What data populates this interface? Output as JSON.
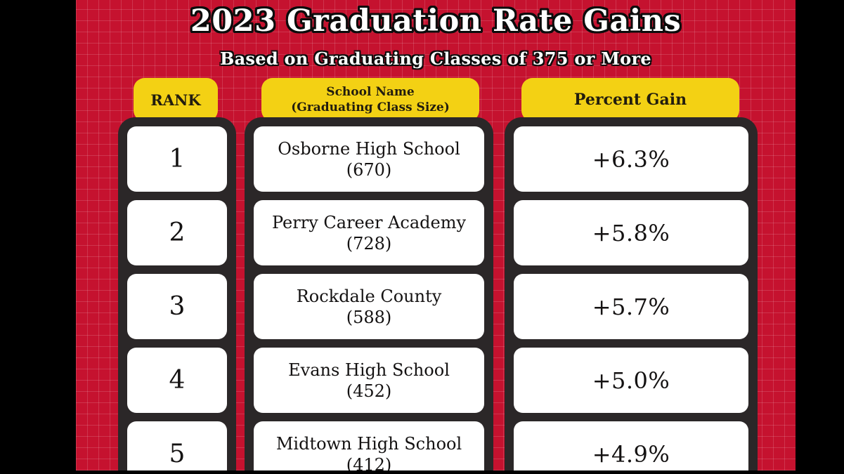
{
  "header": {
    "title": "2023 Graduation Rate Gains",
    "subtitle": "Based on Graduating Classes of 375 or More"
  },
  "table": {
    "headers": {
      "rank": "RANK",
      "school_line1": "School Name",
      "school_line2": "(Graduating Class Size)",
      "percent": "Percent Gain"
    },
    "rows": [
      {
        "rank": "1",
        "school": "Osborne High School",
        "class_size": "(670)",
        "gain": "+6.3%"
      },
      {
        "rank": "2",
        "school": "Perry Career Academy",
        "class_size": "(728)",
        "gain": "+5.8%"
      },
      {
        "rank": "3",
        "school": "Rockdale County",
        "class_size": "(588)",
        "gain": "+5.7%"
      },
      {
        "rank": "4",
        "school": "Evans High School",
        "class_size": "(452)",
        "gain": "+5.0%"
      },
      {
        "rank": "5",
        "school": "Midtown High School",
        "class_size": "(412)",
        "gain": "+4.9%"
      }
    ]
  },
  "colors": {
    "background_red": "#C5122F",
    "accent_yellow": "#F3D114",
    "frame_dark": "#2B2728",
    "cell_white": "#FFFFFF",
    "letterbox_black": "#000000",
    "text_dark": "#141212",
    "text_light": "#FFFFFF"
  },
  "chart_data": {
    "type": "table",
    "title": "2023 Graduation Rate Gains",
    "subtitle": "Based on Graduating Classes of 375 or More",
    "columns": [
      "RANK",
      "School Name (Graduating Class Size)",
      "Percent Gain"
    ],
    "rows": [
      {
        "rank": 1,
        "school": "Osborne High School",
        "graduating_class_size": 670,
        "percent_gain": 6.3
      },
      {
        "rank": 2,
        "school": "Perry Career Academy",
        "graduating_class_size": 728,
        "percent_gain": 5.8
      },
      {
        "rank": 3,
        "school": "Rockdale County",
        "graduating_class_size": 588,
        "percent_gain": 5.7
      },
      {
        "rank": 4,
        "school": "Evans High School",
        "graduating_class_size": 452,
        "percent_gain": 5.0
      },
      {
        "rank": 5,
        "school": "Midtown High School",
        "graduating_class_size": 412,
        "percent_gain": 4.9
      }
    ]
  }
}
